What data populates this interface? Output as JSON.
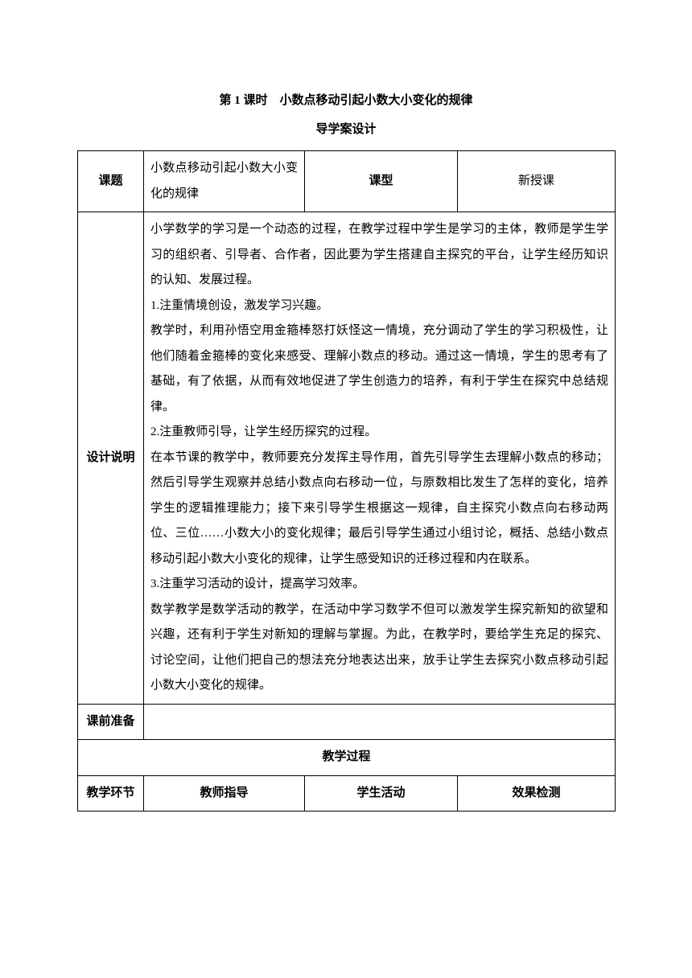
{
  "title": "第 1 课时　小数点移动引起小数大小变化的规律",
  "subtitle": "导学案设计",
  "row1": {
    "label": "课题",
    "topic": "小数点移动引起小数大小变化的规律",
    "typeLabel": "课型",
    "typeValue": "新授课"
  },
  "design": {
    "label": "设计说明",
    "body": "小学数学的学习是一个动态的过程，在教学过程中学生是学习的主体，教师是学生学习的组织者、引导者、合作者，因此要为学生搭建自主探究的平台，让学生经历知识的认知、发展过程。\n1.注重情境创设，激发学习兴趣。\n教学时，利用孙悟空用金箍棒怒打妖怪这一情境，充分调动了学生的学习积极性，让他们随着金箍棒的变化来感受、理解小数点的移动。通过这一情境，学生的思考有了基础，有了依据，从而有效地促进了学生创造力的培养，有利于学生在探究中总结规律。\n2.注重教师引导，让学生经历探究的过程。\n在本节课的教学中，教师要充分发挥主导作用，首先引导学生去理解小数点的移动；然后引导学生观察并总结小数点向右移动一位，与原数相比发生了怎样的变化，培养学生的逻辑推理能力；接下来引导学生根据这一规律，自主探究小数点向右移动两位、三位……小数大小的变化规律；最后引导学生通过小组讨论，概括、总结小数点移动引起小数大小变化的规律，让学生感受知识的迁移过程和内在联系。\n3.注重学习活动的设计，提高学习效率。\n数学教学是数学活动的教学，在活动中学习数学不但可以激发学生探究新知的欲望和兴趣，还有利于学生对新知的理解与掌握。为此，在教学时，要给学生充足的探究、讨论空间，让他们把自己的想法充分地表达出来，放手让学生去探究小数点移动引起小数大小变化的规律。"
  },
  "prep": {
    "label": "课前准备",
    "value": ""
  },
  "process": {
    "header": "教学过程",
    "col1": "教学环节",
    "col2": "教师指导",
    "col3": "学生活动",
    "col4": "效果检测"
  }
}
